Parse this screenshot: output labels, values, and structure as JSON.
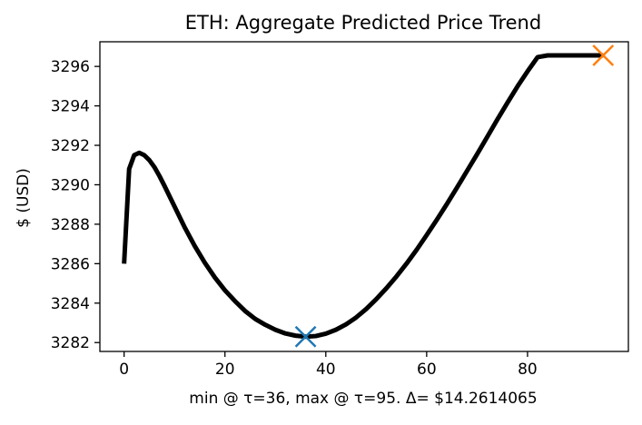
{
  "chart_data": {
    "type": "line",
    "title": "ETH: Aggregate Predicted Price Trend",
    "xlabel": "min @ τ=36, max @ τ=95. Δ= $14.2614065",
    "ylabel": "$ (USD)",
    "xlim": [
      -4.8,
      100.0
    ],
    "ylim": [
      3281.55,
      3297.25
    ],
    "x_ticks": [
      0,
      20,
      40,
      60,
      80
    ],
    "y_ticks": [
      3282,
      3284,
      3286,
      3288,
      3290,
      3292,
      3294,
      3296
    ],
    "grid": false,
    "line_color": "#000000",
    "series": [
      {
        "x": [
          0,
          1,
          2,
          3,
          4,
          5,
          6,
          7,
          8,
          10,
          12,
          14,
          16,
          18,
          20,
          22,
          24,
          26,
          28,
          30,
          32,
          34,
          36,
          38,
          40,
          42,
          44,
          46,
          48,
          50,
          52,
          54,
          56,
          58,
          60,
          62,
          64,
          66,
          68,
          70,
          72,
          74,
          76,
          78,
          80,
          82,
          84,
          86,
          88,
          90,
          92,
          94,
          95
        ],
        "values": [
          3286.0,
          3290.8,
          3291.5,
          3291.62,
          3291.5,
          3291.25,
          3290.9,
          3290.45,
          3289.95,
          3288.9,
          3287.85,
          3286.9,
          3286.05,
          3285.3,
          3284.65,
          3284.1,
          3283.6,
          3283.2,
          3282.9,
          3282.65,
          3282.46,
          3282.35,
          3282.3,
          3282.33,
          3282.45,
          3282.65,
          3282.92,
          3283.27,
          3283.7,
          3284.2,
          3284.75,
          3285.35,
          3286.0,
          3286.7,
          3287.45,
          3288.22,
          3289.02,
          3289.85,
          3290.7,
          3291.55,
          3292.42,
          3293.3,
          3294.15,
          3294.98,
          3295.75,
          3296.47,
          3296.56,
          3296.56,
          3296.56,
          3296.56,
          3296.56,
          3296.56,
          3296.56
        ]
      }
    ],
    "markers": [
      {
        "label": "min",
        "x": 36,
        "y": 3282.3,
        "color": "#1f77b4",
        "shape": "x"
      },
      {
        "label": "max",
        "x": 95,
        "y": 3296.56,
        "color": "#ff7f0e",
        "shape": "x"
      }
    ]
  }
}
